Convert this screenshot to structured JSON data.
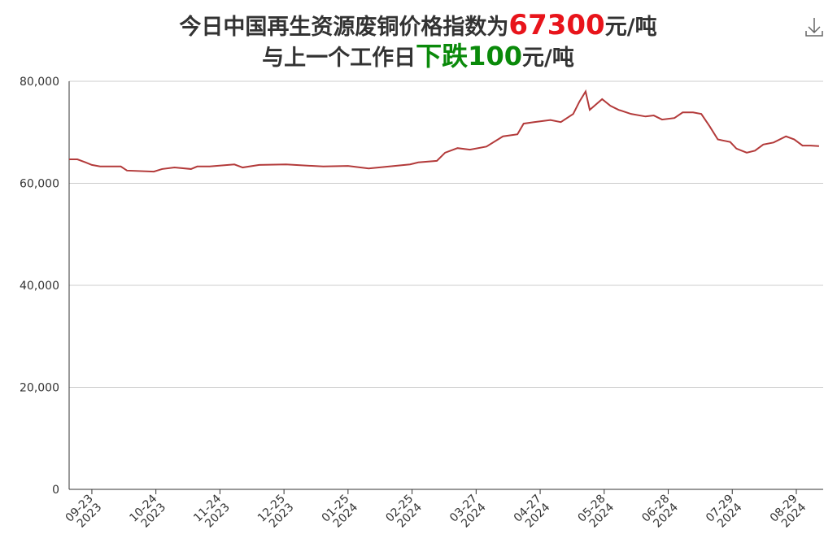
{
  "chart_data": {
    "type": "line",
    "title": {
      "prefix": "今日中国再生资源废铜价格指数为",
      "value": "67300",
      "unit": "元/吨"
    },
    "subtitle": {
      "prefix": "与上一个工作日",
      "change": "下跌",
      "value": "100",
      "unit": "元/吨"
    },
    "title_value_color": "#e8141b",
    "subtitle_change_color": "#0a8a0a",
    "x": [
      "2023-09-12",
      "2023-09-16",
      "2023-09-20",
      "2023-09-23",
      "2023-09-27",
      "2023-10-07",
      "2023-10-10",
      "2023-10-23",
      "2023-10-27",
      "2023-11-02",
      "2023-11-10",
      "2023-11-13",
      "2023-11-19",
      "2023-12-01",
      "2023-12-05",
      "2023-12-13",
      "2023-12-26",
      "2024-01-13",
      "2024-01-25",
      "2024-02-04",
      "2024-02-24",
      "2024-02-28",
      "2024-03-08",
      "2024-03-12",
      "2024-03-18",
      "2024-03-24",
      "2024-04-01",
      "2024-04-09",
      "2024-04-16",
      "2024-04-19",
      "2024-04-24",
      "2024-05-02",
      "2024-05-07",
      "2024-05-13",
      "2024-05-16",
      "2024-05-19",
      "2024-05-21",
      "2024-05-27",
      "2024-05-31",
      "2024-06-04",
      "2024-06-10",
      "2024-06-17",
      "2024-06-21",
      "2024-06-25",
      "2024-07-01",
      "2024-07-05",
      "2024-07-10",
      "2024-07-14",
      "2024-07-18",
      "2024-07-22",
      "2024-07-28",
      "2024-07-31",
      "2024-08-05",
      "2024-08-09",
      "2024-08-13",
      "2024-08-18",
      "2024-08-24",
      "2024-08-28",
      "2024-09-01",
      "2024-09-05",
      "2024-09-09"
    ],
    "series": [
      {
        "name": "废铜价格指数",
        "color": "#b33a3a",
        "values": [
          64700,
          64700,
          64100,
          63600,
          63300,
          63300,
          62500,
          62300,
          62800,
          63100,
          62800,
          63300,
          63300,
          63700,
          63100,
          63600,
          63700,
          63300,
          63400,
          62900,
          63700,
          64100,
          64400,
          66000,
          66900,
          66600,
          67200,
          69200,
          69600,
          71700,
          72000,
          72400,
          72000,
          73600,
          76000,
          78000,
          74400,
          76500,
          75200,
          74400,
          73600,
          73100,
          73300,
          72500,
          72800,
          73900,
          73900,
          73600,
          71200,
          68600,
          68100,
          66800,
          66000,
          66400,
          67600,
          68000,
          69200,
          68600,
          67400,
          67400,
          67300
        ]
      }
    ],
    "xlim": [
      "2023-09-12",
      "2024-09-11"
    ],
    "xticks": [
      {
        "value": "2023-09-23",
        "label": "09-23\n2023"
      },
      {
        "value": "2023-10-24",
        "label": "10-24\n2023"
      },
      {
        "value": "2023-11-24",
        "label": "11-24\n2023"
      },
      {
        "value": "2023-12-25",
        "label": "12-25\n2023"
      },
      {
        "value": "2024-01-25",
        "label": "01-25\n2024"
      },
      {
        "value": "2024-02-25",
        "label": "02-25\n2024"
      },
      {
        "value": "2024-03-27",
        "label": "03-27\n2024"
      },
      {
        "value": "2024-04-27",
        "label": "04-27\n2024"
      },
      {
        "value": "2024-05-28",
        "label": "05-28\n2024"
      },
      {
        "value": "2024-06-28",
        "label": "06-28\n2024"
      },
      {
        "value": "2024-07-29",
        "label": "07-29\n2024"
      },
      {
        "value": "2024-08-29",
        "label": "08-29\n2024"
      }
    ],
    "ylim": [
      0,
      80000
    ],
    "yticks": [
      0,
      {
        "value": 20000,
        "label": "20,000"
      },
      {
        "value": 40000,
        "label": "40,000"
      },
      {
        "value": 60000,
        "label": "60,000"
      },
      {
        "value": 80000,
        "label": "80,000"
      }
    ],
    "grid": true
  }
}
